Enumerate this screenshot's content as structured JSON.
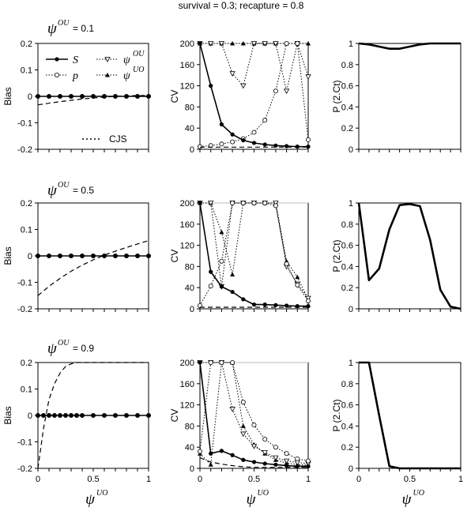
{
  "figure_title": "survival = 0.3; recapture = 0.8",
  "row_labels": [
    {
      "symbol": "ψ",
      "superscript": "OU",
      "text": "= 0.1"
    },
    {
      "symbol": "ψ",
      "superscript": "OU",
      "text": "= 0.5"
    },
    {
      "symbol": "ψ",
      "superscript": "OU",
      "text": "= 0.9"
    }
  ],
  "x_axis_label": {
    "symbol": "ψ",
    "superscript": "UO"
  },
  "legend": {
    "S": {
      "label": "S",
      "marker": "filled-circle"
    },
    "p": {
      "label": "p",
      "marker": "open-circle"
    },
    "psiOU": {
      "label": "ψ",
      "sup": "OU",
      "marker": "open-triangle-down"
    },
    "psiUO": {
      "label": "ψ",
      "sup": "UO",
      "marker": "filled-triangle-up"
    },
    "CJS": {
      "label": "CJS",
      "line": "dashed"
    }
  },
  "chart_data": [
    {
      "id": "bias1",
      "type": "line",
      "ylabel": "Bias",
      "xlim": [
        0,
        1
      ],
      "ylim": [
        -0.2,
        0.2
      ],
      "yticks": [
        -0.2,
        -0.1,
        0,
        0.1,
        0.2
      ],
      "ytick_labels": [
        "-0.2",
        "-0.1",
        "0",
        "0.1",
        "0.2"
      ],
      "x": [
        0,
        0.1,
        0.2,
        0.3,
        0.4,
        0.5,
        0.6,
        0.7,
        0.8,
        0.9,
        1
      ],
      "series": [
        {
          "name": "S",
          "values": [
            0,
            0,
            0,
            0,
            0,
            0,
            0,
            0,
            0,
            0,
            0
          ]
        },
        {
          "name": "p",
          "values": [
            0,
            0,
            0,
            0,
            0,
            0,
            0,
            0,
            0,
            0,
            0
          ]
        },
        {
          "name": "CJS",
          "values": [
            -0.032,
            -0.026,
            -0.02,
            -0.015,
            -0.01,
            -0.006,
            -0.003,
            0,
            0.002,
            0.003,
            0.004
          ]
        }
      ]
    },
    {
      "id": "cv1",
      "type": "line",
      "ylabel": "CV",
      "xlim": [
        0,
        1
      ],
      "ylim": [
        0,
        200
      ],
      "yticks": [
        0,
        40,
        80,
        120,
        160,
        200
      ],
      "ytick_labels": [
        "0",
        "40",
        "80",
        "120",
        "160",
        "200"
      ],
      "x": [
        0,
        0.1,
        0.2,
        0.3,
        0.4,
        0.5,
        0.6,
        0.7,
        0.8,
        0.9,
        1
      ],
      "series": [
        {
          "name": "S",
          "values": [
            200,
            120,
            47,
            28,
            17,
            12,
            9,
            7,
            6,
            5,
            5
          ]
        },
        {
          "name": "p",
          "values": [
            5,
            7,
            10,
            14,
            20,
            32,
            55,
            110,
            200,
            200,
            18
          ]
        },
        {
          "name": "psiOU",
          "values": [
            200,
            200,
            200,
            143,
            120,
            200,
            200,
            200,
            110,
            200,
            137
          ]
        },
        {
          "name": "psiUO",
          "values": [
            200,
            200,
            200,
            200,
            200,
            200,
            200,
            200,
            200,
            200,
            200
          ]
        },
        {
          "name": "CJS",
          "values": [
            4,
            4,
            4,
            4,
            4,
            4,
            4,
            4,
            4,
            4,
            4
          ]
        }
      ]
    },
    {
      "id": "pct1",
      "type": "line",
      "ylabel": "P (2.Ct)",
      "xlim": [
        0,
        1
      ],
      "ylim": [
        0,
        1
      ],
      "yticks": [
        0,
        0.2,
        0.4,
        0.6,
        0.8,
        1
      ],
      "ytick_labels": [
        "0",
        "0.2",
        "0.4",
        "0.6",
        "0.8",
        "1"
      ],
      "x": [
        0,
        0.1,
        0.2,
        0.3,
        0.4,
        0.5,
        0.6,
        0.7,
        0.8,
        0.9,
        1
      ],
      "series": [
        {
          "name": "P (2.Ct)",
          "values": [
            1,
            0.99,
            0.97,
            0.95,
            0.95,
            0.97,
            0.99,
            1,
            1,
            1,
            1
          ]
        }
      ]
    },
    {
      "id": "bias2",
      "type": "line",
      "ylabel": "Bias",
      "xlim": [
        0,
        1
      ],
      "ylim": [
        -0.2,
        0.2
      ],
      "yticks": [
        -0.2,
        -0.1,
        0,
        0.1,
        0.2
      ],
      "ytick_labels": [
        "-0.2",
        "-0.1",
        "0",
        "0.1",
        "0.2"
      ],
      "x": [
        0,
        0.1,
        0.2,
        0.3,
        0.4,
        0.5,
        0.6,
        0.7,
        0.8,
        0.9,
        1
      ],
      "series": [
        {
          "name": "S",
          "values": [
            0,
            0,
            0,
            0,
            0,
            0,
            0,
            0,
            0,
            0,
            0
          ]
        },
        {
          "name": "p",
          "values": [
            0,
            0,
            0,
            0,
            0,
            0,
            0,
            0,
            0,
            0,
            0
          ]
        },
        {
          "name": "CJS",
          "values": [
            -0.15,
            -0.115,
            -0.085,
            -0.058,
            -0.035,
            -0.015,
            0.003,
            0.018,
            0.032,
            0.045,
            0.058
          ]
        }
      ]
    },
    {
      "id": "cv2",
      "type": "line",
      "ylabel": "CV",
      "xlim": [
        0,
        1
      ],
      "ylim": [
        0,
        200
      ],
      "yticks": [
        0,
        40,
        80,
        120,
        160,
        200
      ],
      "ytick_labels": [
        "0",
        "40",
        "80",
        "120",
        "160",
        "200"
      ],
      "x": [
        0,
        0.1,
        0.2,
        0.3,
        0.4,
        0.5,
        0.6,
        0.7,
        0.8,
        0.9,
        1
      ],
      "series": [
        {
          "name": "S",
          "values": [
            200,
            70,
            42,
            32,
            18,
            8,
            8,
            7,
            6,
            5,
            5
          ]
        },
        {
          "name": "p",
          "values": [
            6,
            43,
            90,
            200,
            200,
            200,
            200,
            195,
            85,
            45,
            15
          ]
        },
        {
          "name": "psiOU",
          "values": [
            200,
            200,
            42,
            200,
            200,
            200,
            200,
            200,
            80,
            47,
            20
          ]
        },
        {
          "name": "psiUO",
          "values": [
            200,
            200,
            145,
            65,
            200,
            200,
            200,
            200,
            90,
            60,
            18
          ]
        },
        {
          "name": "CJS",
          "values": [
            3,
            3,
            3,
            3,
            3,
            3,
            3,
            3,
            3,
            3,
            3
          ]
        }
      ]
    },
    {
      "id": "pct2",
      "type": "line",
      "ylabel": "P (2.Ct)",
      "xlim": [
        0,
        1
      ],
      "ylim": [
        0,
        1
      ],
      "yticks": [
        0,
        0.2,
        0.4,
        0.6,
        0.8,
        1
      ],
      "ytick_labels": [
        "0",
        "0.2",
        "0.4",
        "0.6",
        "0.8",
        "1"
      ],
      "x": [
        0,
        0.1,
        0.2,
        0.3,
        0.4,
        0.5,
        0.6,
        0.7,
        0.8,
        0.9,
        1
      ],
      "series": [
        {
          "name": "P (2.Ct)",
          "values": [
            1,
            0.27,
            0.38,
            0.75,
            0.98,
            0.99,
            0.97,
            0.65,
            0.18,
            0.02,
            0
          ]
        }
      ]
    },
    {
      "id": "bias3",
      "type": "line",
      "ylabel": "Bias",
      "xlim": [
        0,
        1
      ],
      "ylim": [
        -0.2,
        0.2
      ],
      "yticks": [
        -0.2,
        -0.1,
        0,
        0.1,
        0.2
      ],
      "ytick_labels": [
        "-0.2",
        "-0.1",
        "0",
        "0.1",
        "0.2"
      ],
      "x": [
        0,
        0.05,
        0.1,
        0.15,
        0.2,
        0.25,
        0.3,
        0.35,
        0.4,
        0.5,
        0.6,
        0.7,
        0.8,
        0.9,
        1
      ],
      "series": [
        {
          "name": "S",
          "values": [
            0,
            0,
            0,
            0,
            0,
            0,
            0,
            0,
            0,
            0,
            0,
            0,
            0,
            0,
            0
          ]
        },
        {
          "name": "p",
          "values": [
            0,
            0,
            0,
            0,
            0,
            0,
            0,
            0,
            0,
            0,
            0,
            0,
            0,
            0,
            0
          ]
        },
        {
          "name": "CJS",
          "values": [
            -0.2,
            -0.05,
            0.06,
            0.12,
            0.16,
            0.185,
            0.195,
            0.2,
            0.2,
            0.2,
            0.2,
            0.2,
            0.2,
            0.2,
            0.2
          ]
        }
      ]
    },
    {
      "id": "cv3",
      "type": "line",
      "ylabel": "CV",
      "xlim": [
        0,
        1
      ],
      "ylim": [
        0,
        200
      ],
      "yticks": [
        0,
        40,
        80,
        120,
        160,
        200
      ],
      "ytick_labels": [
        "0",
        "40",
        "80",
        "120",
        "160",
        "200"
      ],
      "x": [
        0,
        0.1,
        0.2,
        0.3,
        0.4,
        0.5,
        0.6,
        0.7,
        0.8,
        0.9,
        1
      ],
      "series": [
        {
          "name": "S",
          "values": [
            200,
            28,
            33,
            25,
            16,
            12,
            9,
            7,
            5,
            4,
            4
          ]
        },
        {
          "name": "p",
          "values": [
            32,
            200,
            200,
            200,
            125,
            82,
            55,
            40,
            28,
            18,
            14
          ]
        },
        {
          "name": "psiOU",
          "values": [
            200,
            200,
            200,
            112,
            65,
            42,
            30,
            20,
            14,
            11,
            9
          ]
        },
        {
          "name": "psiUO",
          "values": [
            28,
            7,
            200,
            200,
            80,
            45,
            28,
            16,
            10,
            7,
            6
          ]
        },
        {
          "name": "CJS",
          "values": [
            20,
            12,
            8,
            5,
            3,
            2,
            2,
            2,
            2,
            2,
            2
          ]
        }
      ]
    },
    {
      "id": "pct3",
      "type": "line",
      "ylabel": "P (2.Ct)",
      "xlim": [
        0,
        1
      ],
      "ylim": [
        0,
        1
      ],
      "yticks": [
        0,
        0.2,
        0.4,
        0.6,
        0.8,
        1
      ],
      "ytick_labels": [
        "0",
        "0.2",
        "0.4",
        "0.6",
        "0.8",
        "1"
      ],
      "x": [
        0,
        0.1,
        0.2,
        0.3,
        0.4,
        0.5,
        0.6,
        0.7,
        0.8,
        0.9,
        1
      ],
      "series": [
        {
          "name": "P (2.Ct)",
          "values": [
            1,
            1,
            0.5,
            0.02,
            0,
            0,
            0,
            0,
            0,
            0,
            0
          ]
        }
      ]
    }
  ],
  "x_tick_labels": [
    "0",
    "0.5",
    "1"
  ]
}
